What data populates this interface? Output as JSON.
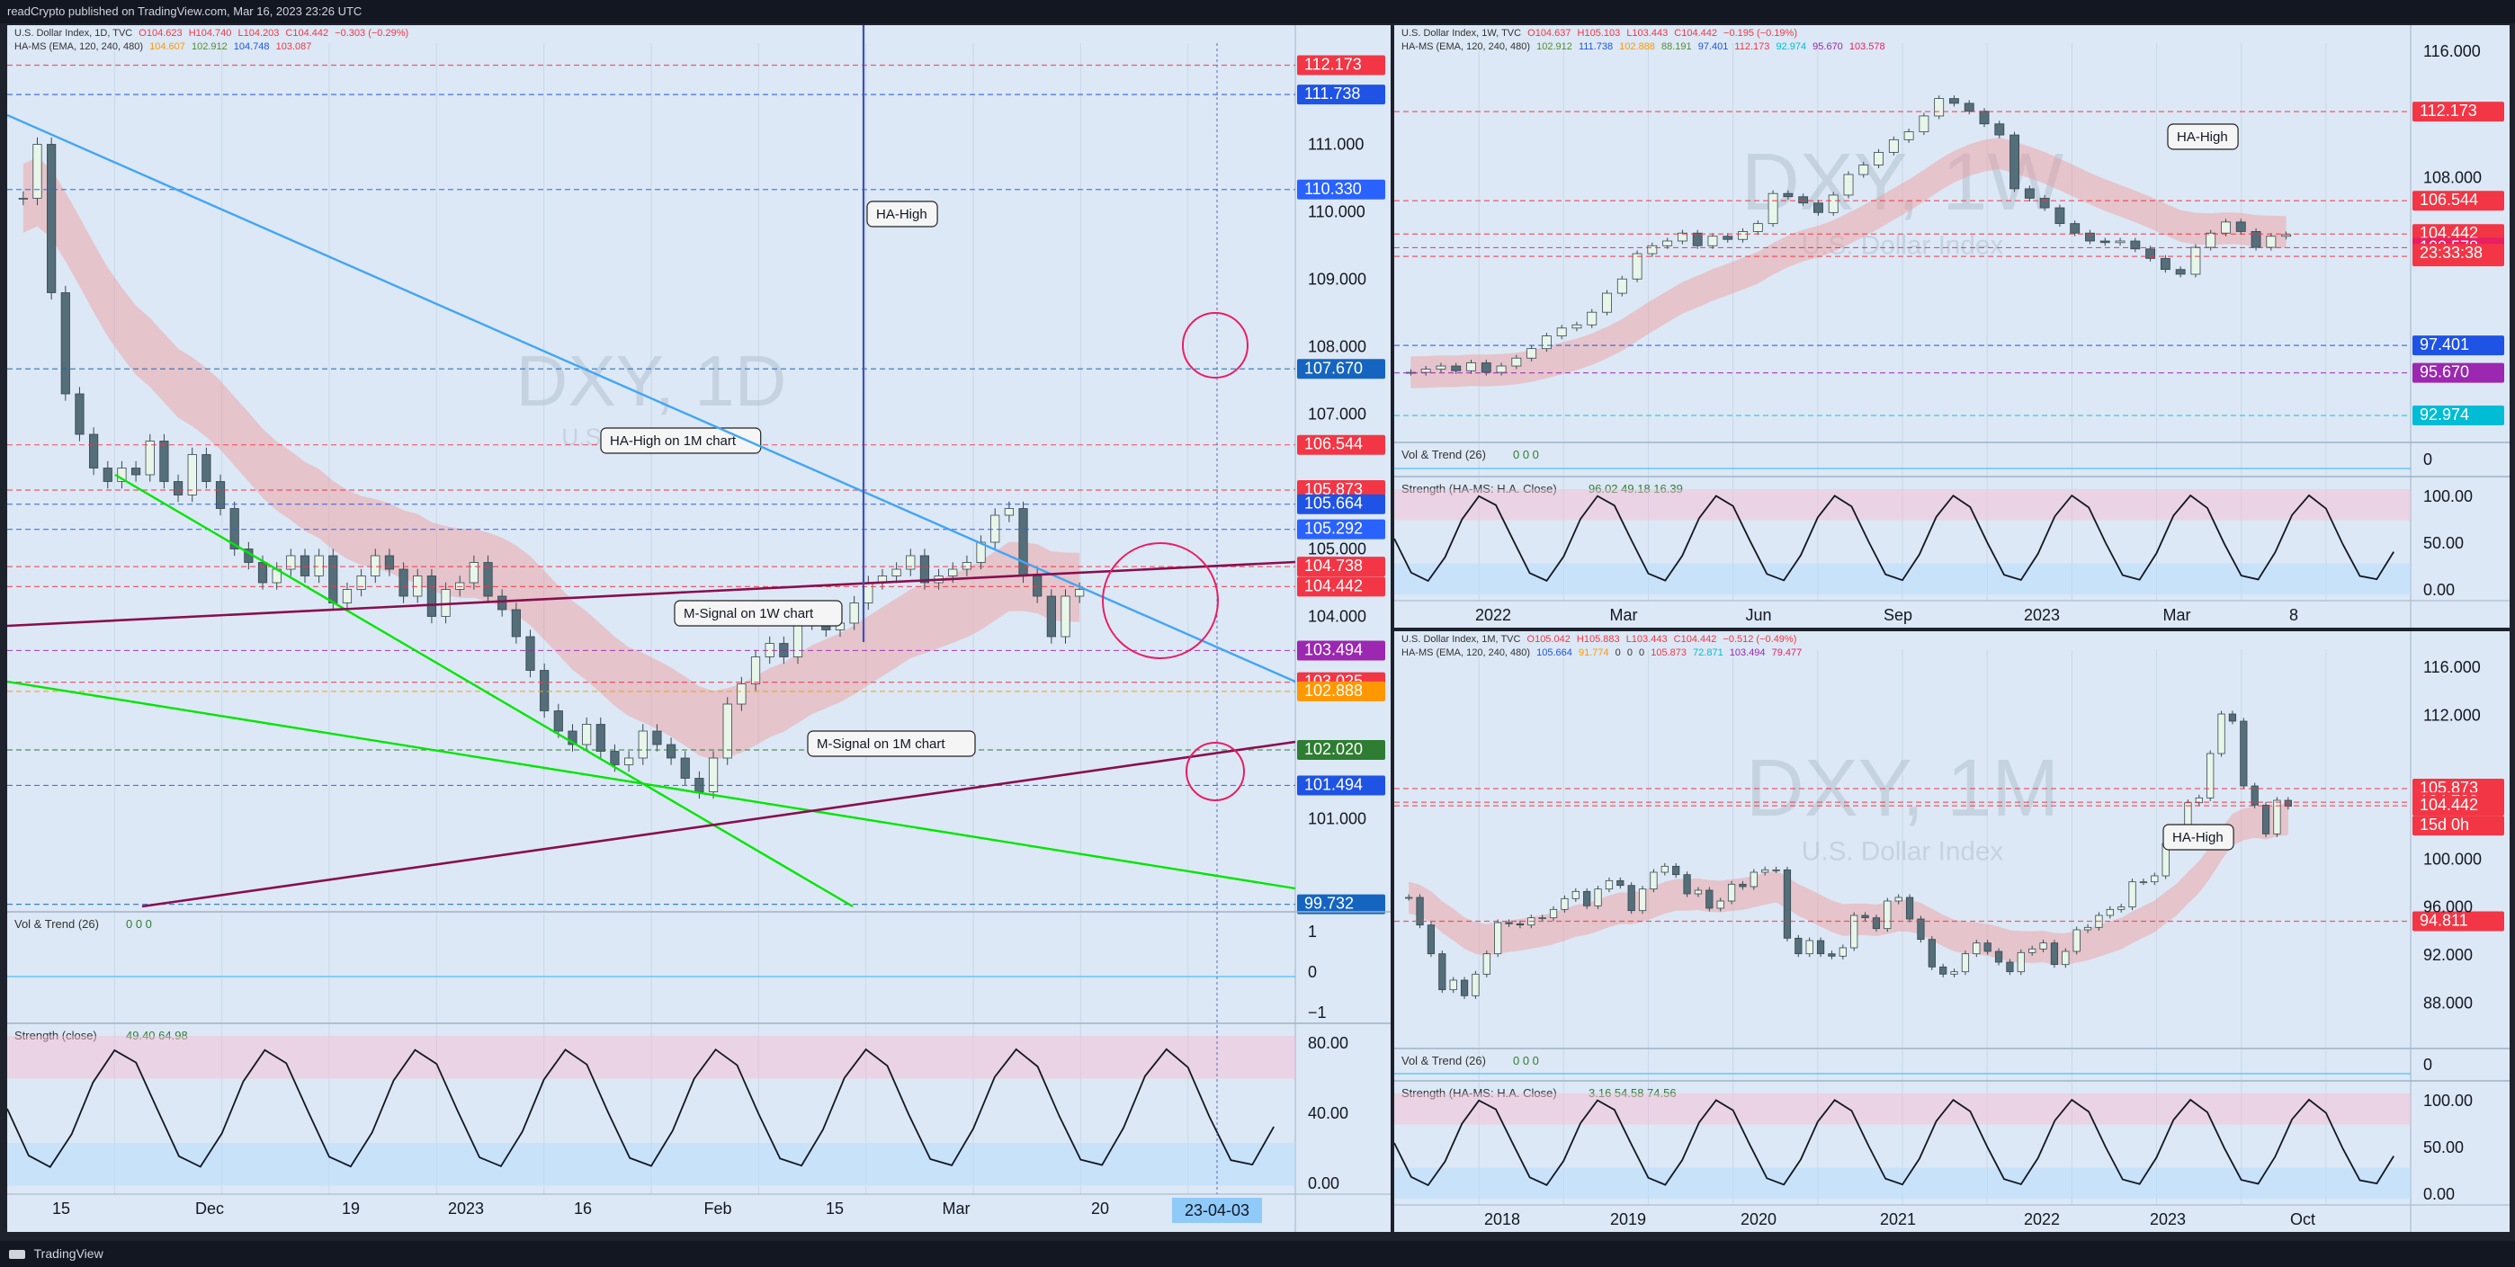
{
  "publish_line": "readCrypto published on TradingView.com, Mar 16, 2023 23:26 UTC",
  "footer_logo_text": "TradingView",
  "colors": {
    "bg": "#dce8f5",
    "axis": "#131722",
    "blue": "#1e53e5",
    "red": "#f23645",
    "green": "#00e600",
    "orange": "#ff9800",
    "purple": "#9c27b0",
    "magenta": "#e91e63",
    "maroon": "#880e4f",
    "navy": "#0d47a1"
  },
  "chart_data": [
    {
      "id": "daily",
      "type": "candlestick",
      "symbol_line": [
        "U.S. Dollar Index, 1D, TVC",
        "O104.623",
        "H104.740",
        "L104.203",
        "C104.442",
        "−0.303 (−0.29%)"
      ],
      "ha_ms_line": [
        "HA-MS (EMA, 120, 240, 480)",
        "104.607",
        "102.912",
        "104.748",
        "103.087"
      ],
      "watermark": "DXY, 1D",
      "watermark_sub": "U.S. Dollar Index",
      "x_ticks": [
        "15",
        "Dec",
        "19",
        "2023",
        "16",
        "Feb",
        "15",
        "Mar",
        "20"
      ],
      "x_cursor_label": "23-04-03",
      "y_range": [
        99.7,
        112.5
      ],
      "y_ticks": [
        "111.000",
        "110.000",
        "109.000",
        "108.000",
        "107.000",
        "105.000",
        "104.000",
        "101.000"
      ],
      "price_labels": [
        {
          "value": 112.173,
          "text": "112.173",
          "color": "#f23645"
        },
        {
          "value": 111.738,
          "text": "111.738",
          "color": "#1e53e5"
        },
        {
          "value": 110.33,
          "text": "110.330",
          "color": "#2962ff"
        },
        {
          "value": 107.67,
          "text": "107.670",
          "color": "#1565c0"
        },
        {
          "value": 106.544,
          "text": "106.544",
          "color": "#f23645"
        },
        {
          "value": 105.873,
          "text": "105.873",
          "color": "#f23645"
        },
        {
          "value": 105.664,
          "text": "105.664",
          "color": "#1e53e5"
        },
        {
          "value": 105.292,
          "text": "105.292",
          "color": "#2962ff"
        },
        {
          "value": 104.738,
          "text": "104.738",
          "color": "#f23645"
        },
        {
          "value": 104.442,
          "text": "104.442",
          "color": "#f23645"
        },
        {
          "value": 103.494,
          "text": "103.494",
          "color": "#9c27b0"
        },
        {
          "value": 103.025,
          "text": "103.025",
          "color": "#f23645"
        },
        {
          "value": 102.888,
          "text": "102.888",
          "color": "#ff9800"
        },
        {
          "value": 102.02,
          "text": "102.020",
          "color": "#2e7d32"
        },
        {
          "value": 101.494,
          "text": "101.494",
          "color": "#1e53e5"
        },
        {
          "value": 99.732,
          "text": "99.732",
          "color": "#1565c0"
        }
      ],
      "closes": [
        110.2,
        111.0,
        108.8,
        107.3,
        106.7,
        106.2,
        106.0,
        106.2,
        106.1,
        106.6,
        106.0,
        105.8,
        106.4,
        106.0,
        105.6,
        105.0,
        104.8,
        104.5,
        104.7,
        104.9,
        104.6,
        104.9,
        104.2,
        104.4,
        104.6,
        104.9,
        104.7,
        104.3,
        104.6,
        104.0,
        104.4,
        104.5,
        104.8,
        104.3,
        104.1,
        103.7,
        103.2,
        102.6,
        102.3,
        102.1,
        102.4,
        102.0,
        101.8,
        101.9,
        102.3,
        102.1,
        101.9,
        101.6,
        101.4,
        101.9,
        102.7,
        103.0,
        103.4,
        103.6,
        103.4,
        103.9,
        104.0,
        103.8,
        103.9,
        104.2,
        104.5,
        104.6,
        104.7,
        104.9,
        104.5,
        104.6,
        104.7,
        104.8,
        105.1,
        105.5,
        105.6,
        104.6,
        104.3,
        103.7,
        104.3,
        104.4
      ],
      "annotations": [
        "HA-High",
        "HA-High on 1M chart",
        "M-Signal on 1W chart",
        "M-Signal on 1M chart"
      ],
      "sub_indicators": [
        {
          "name": "Vol & Trend (26)",
          "values_text": "0  0  0",
          "y_ticks": [
            "1",
            "0",
            "−1"
          ]
        },
        {
          "name": "Strength (close)",
          "values_text": "49.40  64.98",
          "y_ticks": [
            "80.00",
            "40.00",
            "0.00"
          ]
        }
      ]
    },
    {
      "id": "weekly",
      "type": "candlestick",
      "symbol_line": [
        "U.S. Dollar Index, 1W, TVC",
        "O104.637",
        "H105.103",
        "L103.443",
        "C104.442",
        "−0.195 (−0.19%)"
      ],
      "ha_ms_line": [
        "HA-MS (EMA, 120, 240, 480)",
        "102.912",
        "111.738",
        "102.888",
        "88.191",
        "97.401",
        "112.173",
        "92.974",
        "95.670",
        "103.578"
      ],
      "watermark": "DXY, 1W",
      "watermark_sub": "U.S. Dollar Index",
      "x_ticks": [
        "2022",
        "Mar",
        "Jun",
        "Sep",
        "2023",
        "Mar",
        "8"
      ],
      "y_range": [
        91.5,
        116.5
      ],
      "y_ticks": [
        "116.000",
        "108.000"
      ],
      "price_labels": [
        {
          "value": 112.173,
          "text": "112.173",
          "color": "#f23645"
        },
        {
          "value": 106.544,
          "text": "106.544",
          "color": "#f23645"
        },
        {
          "value": 104.442,
          "text": "104.442",
          "color": "#f23645"
        },
        {
          "value": 103.578,
          "text": "103.578",
          "color": "#e91e63"
        },
        {
          "value": 103.025,
          "text": "103.025",
          "color": "#f23645"
        },
        {
          "value": 97.401,
          "text": "97.401",
          "color": "#1e53e5"
        },
        {
          "value": 95.67,
          "text": "95.670",
          "color": "#9c27b0"
        },
        {
          "value": 92.974,
          "text": "92.974",
          "color": "#00bcd4"
        }
      ],
      "countdown": "23:33:38",
      "closes": [
        95.7,
        95.9,
        96.1,
        95.8,
        96.3,
        95.7,
        96.1,
        96.6,
        97.2,
        98.0,
        98.5,
        98.7,
        99.5,
        100.7,
        101.6,
        103.2,
        103.7,
        104.0,
        104.5,
        103.7,
        104.3,
        104.1,
        104.6,
        105.1,
        107.0,
        106.8,
        106.4,
        105.8,
        106.9,
        108.2,
        108.8,
        109.6,
        110.4,
        110.9,
        111.9,
        113.0,
        112.7,
        112.2,
        111.4,
        110.7,
        107.3,
        106.7,
        106.1,
        105.1,
        104.5,
        104.0,
        103.9,
        104.0,
        103.5,
        102.9,
        102.2,
        101.9,
        103.6,
        104.5,
        105.2,
        104.6,
        103.6,
        104.3,
        104.4
      ],
      "annotations": [
        "HA-High"
      ],
      "sub_indicators": [
        {
          "name": "Vol & Trend (26)",
          "values_text": "0  0  0",
          "y_ticks": [
            "0"
          ]
        },
        {
          "name": "Strength (HA-MS: H.A. Close)",
          "values_text": "96.02  49.18  16.39",
          "y_ticks": [
            "100.00",
            "50.00",
            "0.00"
          ]
        }
      ]
    },
    {
      "id": "monthly",
      "type": "candlestick",
      "symbol_line": [
        "U.S. Dollar Index, 1M, TVC",
        "O105.042",
        "H105.883",
        "L103.443",
        "C104.442",
        "−0.512 (−0.49%)"
      ],
      "ha_ms_line": [
        "HA-MS (EMA, 120, 240, 480)",
        "105.664",
        "91.774",
        "0",
        "0",
        "0",
        "105.873",
        "72.871",
        "103.494",
        "79.477"
      ],
      "watermark": "DXY, 1M",
      "watermark_sub": "U.S. Dollar Index",
      "x_ticks": [
        "2018",
        "2019",
        "2020",
        "2021",
        "2022",
        "2023",
        "Oct"
      ],
      "y_range": [
        84.5,
        117.5
      ],
      "y_ticks": [
        "116.000",
        "112.000",
        "100.000",
        "96.000",
        "92.000",
        "88.000"
      ],
      "price_labels": [
        {
          "value": 105.873,
          "text": "105.873",
          "color": "#f23645"
        },
        {
          "value": 104.738,
          "text": "104.738",
          "color": "#f23645"
        },
        {
          "value": 104.442,
          "text": "104.442",
          "color": "#f23645"
        },
        {
          "value": 94.811,
          "text": "94.811",
          "color": "#f23645"
        }
      ],
      "countdown": "15d 0h",
      "closes": [
        96.8,
        94.5,
        92.1,
        89.1,
        89.9,
        88.6,
        90.4,
        92.1,
        94.7,
        94.6,
        94.5,
        95.1,
        95.1,
        95.8,
        96.7,
        97.3,
        96.1,
        97.5,
        98.2,
        97.8,
        95.7,
        97.5,
        98.9,
        99.4,
        98.7,
        97.1,
        97.4,
        95.9,
        96.5,
        97.9,
        97.7,
        98.9,
        99.1,
        99.1,
        93.4,
        92.1,
        93.2,
        92.1,
        91.9,
        92.6,
        95.3,
        95.1,
        94.2,
        96.5,
        96.8,
        95.0,
        93.3,
        91.0,
        90.4,
        90.6,
        92.1,
        93.0,
        92.3,
        91.4,
        90.6,
        92.2,
        92.5,
        93.0,
        91.2,
        92.3,
        94.1,
        94.3,
        95.3,
        95.8,
        96.0,
        98.1,
        98.1,
        98.6,
        101.3,
        101.7,
        104.7,
        105.1,
        108.8,
        112.1,
        111.5,
        106.1,
        104.5,
        102.1,
        104.9,
        104.4
      ],
      "annotations": [
        "HA-High"
      ],
      "sub_indicators": [
        {
          "name": "Vol & Trend (26)",
          "values_text": "0  0  0",
          "y_ticks": [
            "0"
          ]
        },
        {
          "name": "Strength (HA-MS: H.A. Close)",
          "values_text": "3.16  54.58  74.56",
          "y_ticks": [
            "100.00",
            "50.00",
            "0.00"
          ]
        }
      ]
    }
  ]
}
